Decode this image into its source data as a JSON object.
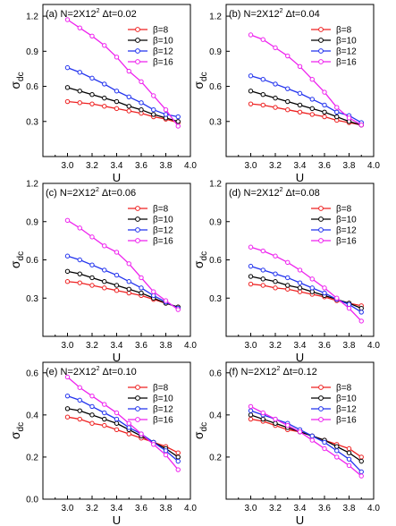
{
  "chart_data": [
    {
      "type": "line",
      "panel_label": "(a)",
      "title_main": "N=2X12",
      "title_sup": "2",
      "title_tail": " Δt=0.02",
      "xlabel": "U",
      "ylabel_main": "σ",
      "ylabel_sub": "dc",
      "xlim": [
        2.8,
        4.0
      ],
      "ylim": [
        0.0,
        1.3
      ],
      "xticks": [
        "3.0",
        "3.2",
        "3.4",
        "3.6",
        "3.8",
        "4.0"
      ],
      "yticks": [
        "0.3",
        "0.6",
        "0.9",
        "1.2"
      ],
      "ytick_values": [
        0.3,
        0.6,
        0.9,
        1.2
      ],
      "x": [
        3.0,
        3.1,
        3.2,
        3.3,
        3.4,
        3.5,
        3.6,
        3.7,
        3.8,
        3.9
      ],
      "series": [
        {
          "name": "β=8",
          "values": [
            0.47,
            0.46,
            0.45,
            0.43,
            0.41,
            0.39,
            0.37,
            0.34,
            0.32,
            0.29
          ]
        },
        {
          "name": "β=10",
          "values": [
            0.59,
            0.56,
            0.53,
            0.5,
            0.47,
            0.43,
            0.4,
            0.36,
            0.33,
            0.3
          ]
        },
        {
          "name": "β=12",
          "values": [
            0.76,
            0.72,
            0.67,
            0.62,
            0.56,
            0.51,
            0.46,
            0.4,
            0.36,
            0.34
          ]
        },
        {
          "name": "β=16",
          "values": [
            1.17,
            1.1,
            1.03,
            0.95,
            0.85,
            0.73,
            0.64,
            0.52,
            0.4,
            0.26
          ]
        }
      ]
    },
    {
      "type": "line",
      "panel_label": "(b)",
      "title_main": "N=2X12",
      "title_sup": "2",
      "title_tail": " Δt=0.04",
      "xlabel": "U",
      "ylabel_main": "σ",
      "ylabel_sub": "dc",
      "xlim": [
        2.8,
        4.0
      ],
      "ylim": [
        0.0,
        1.3
      ],
      "xticks": [
        "3.0",
        "3.2",
        "3.4",
        "3.6",
        "3.8",
        "4.0"
      ],
      "yticks": [
        "0.3",
        "0.6",
        "0.9",
        "1.2"
      ],
      "ytick_values": [
        0.3,
        0.6,
        0.9,
        1.2
      ],
      "x": [
        3.0,
        3.1,
        3.2,
        3.3,
        3.4,
        3.5,
        3.6,
        3.7,
        3.8,
        3.9
      ],
      "series": [
        {
          "name": "β=8",
          "values": [
            0.45,
            0.44,
            0.42,
            0.4,
            0.38,
            0.36,
            0.34,
            0.31,
            0.29,
            0.27
          ]
        },
        {
          "name": "β=10",
          "values": [
            0.56,
            0.53,
            0.5,
            0.47,
            0.44,
            0.41,
            0.38,
            0.34,
            0.3,
            0.27
          ]
        },
        {
          "name": "β=12",
          "values": [
            0.69,
            0.66,
            0.62,
            0.58,
            0.54,
            0.49,
            0.44,
            0.38,
            0.35,
            0.29
          ]
        },
        {
          "name": "β=16",
          "values": [
            1.04,
            1.0,
            0.93,
            0.86,
            0.77,
            0.66,
            0.55,
            0.42,
            0.33,
            0.27
          ]
        }
      ]
    },
    {
      "type": "line",
      "panel_label": "(c)",
      "title_main": "N=2X12",
      "title_sup": "2",
      "title_tail": " Δt=0.06",
      "xlabel": "U",
      "ylabel_main": "σ",
      "ylabel_sub": "dc",
      "xlim": [
        2.8,
        4.0
      ],
      "ylim": [
        0.0,
        1.2
      ],
      "xticks": [
        "3.0",
        "3.2",
        "3.4",
        "3.6",
        "3.8",
        "4.0"
      ],
      "yticks": [
        "0.3",
        "0.6",
        "0.9",
        "1.2"
      ],
      "ytick_values": [
        0.3,
        0.6,
        0.9,
        1.2
      ],
      "x": [
        3.0,
        3.1,
        3.2,
        3.3,
        3.4,
        3.5,
        3.6,
        3.7,
        3.8,
        3.9
      ],
      "series": [
        {
          "name": "β=8",
          "values": [
            0.43,
            0.42,
            0.4,
            0.38,
            0.36,
            0.34,
            0.32,
            0.29,
            0.26,
            0.23
          ]
        },
        {
          "name": "β=10",
          "values": [
            0.51,
            0.49,
            0.46,
            0.43,
            0.4,
            0.37,
            0.34,
            0.3,
            0.26,
            0.23
          ]
        },
        {
          "name": "β=12",
          "values": [
            0.63,
            0.6,
            0.56,
            0.52,
            0.48,
            0.43,
            0.38,
            0.32,
            0.27,
            0.22
          ]
        },
        {
          "name": "β=16",
          "values": [
            0.91,
            0.85,
            0.78,
            0.71,
            0.66,
            0.57,
            0.46,
            0.35,
            0.28,
            0.21
          ]
        }
      ]
    },
    {
      "type": "line",
      "panel_label": "(d)",
      "title_main": "N=2X12",
      "title_sup": "2",
      "title_tail": " Δt=0.08",
      "xlabel": "U",
      "ylabel_main": "σ",
      "ylabel_sub": "dc",
      "xlim": [
        2.8,
        4.0
      ],
      "ylim": [
        0.0,
        1.2
      ],
      "xticks": [
        "3.0",
        "3.2",
        "3.4",
        "3.6",
        "3.8",
        "4.0"
      ],
      "yticks": [
        "0.3",
        "0.6",
        "0.9",
        "1.2"
      ],
      "ytick_values": [
        0.3,
        0.6,
        0.9,
        1.2
      ],
      "x": [
        3.0,
        3.1,
        3.2,
        3.3,
        3.4,
        3.5,
        3.6,
        3.7,
        3.8,
        3.9
      ],
      "series": [
        {
          "name": "β=8",
          "values": [
            0.41,
            0.4,
            0.38,
            0.37,
            0.35,
            0.33,
            0.31,
            0.28,
            0.26,
            0.24
          ]
        },
        {
          "name": "β=10",
          "values": [
            0.47,
            0.45,
            0.43,
            0.4,
            0.38,
            0.35,
            0.32,
            0.29,
            0.26,
            0.22
          ]
        },
        {
          "name": "β=12",
          "values": [
            0.55,
            0.52,
            0.49,
            0.46,
            0.42,
            0.38,
            0.34,
            0.29,
            0.25,
            0.19
          ]
        },
        {
          "name": "β=16",
          "values": [
            0.7,
            0.67,
            0.63,
            0.58,
            0.52,
            0.45,
            0.38,
            0.3,
            0.22,
            0.12
          ]
        }
      ]
    },
    {
      "type": "line",
      "panel_label": "(e)",
      "title_main": "N=2X12",
      "title_sup": "2",
      "title_tail": " Δt=0.10",
      "xlabel": "U",
      "ylabel_main": "σ",
      "ylabel_sub": "dc",
      "xlim": [
        2.8,
        4.0
      ],
      "ylim": [
        0.0,
        0.65
      ],
      "xticks": [
        "3.0",
        "3.2",
        "3.4",
        "3.6",
        "3.8",
        "4.0"
      ],
      "yticks": [
        "0.0",
        "0.2",
        "0.4",
        "0.6"
      ],
      "ytick_values": [
        0.0,
        0.2,
        0.4,
        0.6
      ],
      "x": [
        3.0,
        3.1,
        3.2,
        3.3,
        3.4,
        3.5,
        3.6,
        3.7,
        3.8,
        3.9
      ],
      "series": [
        {
          "name": "β=8",
          "values": [
            0.39,
            0.38,
            0.36,
            0.35,
            0.33,
            0.31,
            0.29,
            0.27,
            0.25,
            0.22
          ]
        },
        {
          "name": "β=10",
          "values": [
            0.43,
            0.42,
            0.4,
            0.38,
            0.36,
            0.33,
            0.3,
            0.27,
            0.24,
            0.2
          ]
        },
        {
          "name": "β=12",
          "values": [
            0.49,
            0.47,
            0.44,
            0.41,
            0.38,
            0.34,
            0.31,
            0.27,
            0.23,
            0.18
          ]
        },
        {
          "name": "β=16",
          "values": [
            0.58,
            0.53,
            0.49,
            0.45,
            0.41,
            0.36,
            0.31,
            0.26,
            0.21,
            0.14
          ]
        }
      ]
    },
    {
      "type": "line",
      "panel_label": "(f)",
      "title_main": "N=2X12",
      "title_sup": "2",
      "title_tail": " Δt=0.12",
      "xlabel": "U",
      "ylabel_main": "σ",
      "ylabel_sub": "dc",
      "xlim": [
        2.8,
        4.0
      ],
      "ylim": [
        0.0,
        0.65
      ],
      "xticks": [
        "3.0",
        "3.2",
        "3.4",
        "3.6",
        "3.8",
        "4.0"
      ],
      "yticks": [
        "0.2",
        "0.4",
        "0.6"
      ],
      "ytick_values": [
        0.2,
        0.4,
        0.6
      ],
      "x": [
        3.0,
        3.1,
        3.2,
        3.3,
        3.4,
        3.5,
        3.6,
        3.7,
        3.8,
        3.9
      ],
      "series": [
        {
          "name": "β=8",
          "values": [
            0.38,
            0.37,
            0.35,
            0.33,
            0.32,
            0.3,
            0.28,
            0.26,
            0.24,
            0.2
          ]
        },
        {
          "name": "β=10",
          "values": [
            0.4,
            0.38,
            0.36,
            0.34,
            0.32,
            0.3,
            0.28,
            0.25,
            0.22,
            0.18
          ]
        },
        {
          "name": "β=12",
          "values": [
            0.42,
            0.4,
            0.38,
            0.36,
            0.33,
            0.3,
            0.27,
            0.23,
            0.19,
            0.13
          ]
        },
        {
          "name": "β=16",
          "values": [
            0.44,
            0.41,
            0.38,
            0.35,
            0.32,
            0.28,
            0.24,
            0.2,
            0.16,
            0.11
          ]
        }
      ]
    }
  ],
  "series_colors": [
    "#ee2222",
    "#000000",
    "#2233ee",
    "#ee22ee"
  ],
  "marker_shape": "open-circle"
}
